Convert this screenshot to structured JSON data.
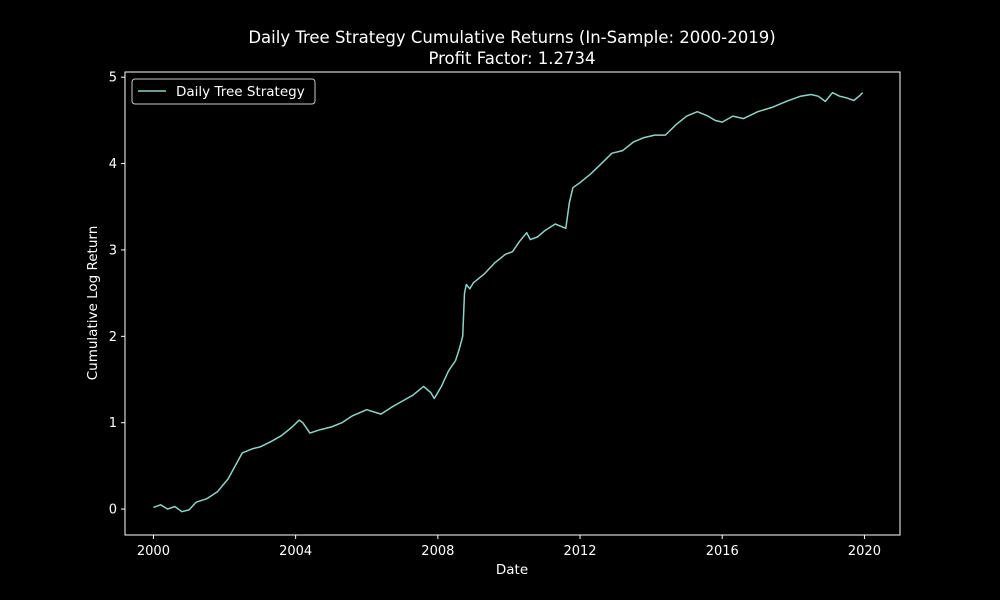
{
  "chart_data": {
    "type": "line",
    "title": "Daily Tree Strategy Cumulative Returns (In-Sample: 2000-2019)",
    "subtitle": "Profit Factor: 1.2734",
    "xlabel": "Date",
    "ylabel": "Cumulative Log Return",
    "xlim": [
      1999.2,
      2021.0
    ],
    "ylim": [
      -0.3,
      5.06
    ],
    "x_ticks": [
      2000,
      2004,
      2008,
      2012,
      2016,
      2020
    ],
    "x_tick_labels": [
      "2000",
      "2004",
      "2008",
      "2012",
      "2016",
      "2020"
    ],
    "y_ticks": [
      0,
      1,
      2,
      3,
      4,
      5
    ],
    "y_tick_labels": [
      "0",
      "1",
      "2",
      "3",
      "4",
      "5"
    ],
    "grid": false,
    "legend_position": "upper-left",
    "series": [
      {
        "name": "Daily Tree Strategy",
        "color": "#8dd3c7",
        "x": [
          2000.0,
          2000.2,
          2000.4,
          2000.6,
          2000.8,
          2001.0,
          2001.2,
          2001.5,
          2001.8,
          2002.1,
          2002.3,
          2002.5,
          2002.8,
          2003.0,
          2003.3,
          2003.6,
          2003.9,
          2004.1,
          2004.2,
          2004.4,
          2004.7,
          2005.0,
          2005.3,
          2005.6,
          2006.0,
          2006.4,
          2006.7,
          2007.0,
          2007.3,
          2007.6,
          2007.8,
          2007.9,
          2008.1,
          2008.3,
          2008.5,
          2008.6,
          2008.7,
          2008.75,
          2008.8,
          2008.9,
          2009.0,
          2009.3,
          2009.6,
          2009.9,
          2010.1,
          2010.3,
          2010.5,
          2010.6,
          2010.8,
          2011.0,
          2011.3,
          2011.6,
          2011.7,
          2011.8,
          2012.0,
          2012.3,
          2012.6,
          2012.9,
          2013.2,
          2013.5,
          2013.8,
          2014.1,
          2014.4,
          2014.7,
          2015.0,
          2015.3,
          2015.6,
          2015.8,
          2016.0,
          2016.3,
          2016.6,
          2017.0,
          2017.4,
          2017.8,
          2018.2,
          2018.5,
          2018.7,
          2018.9,
          2019.1,
          2019.3,
          2019.5,
          2019.7,
          2019.85,
          2019.95
        ],
        "values": [
          0.02,
          0.05,
          0.0,
          0.03,
          -0.03,
          -0.01,
          0.08,
          0.12,
          0.2,
          0.35,
          0.5,
          0.65,
          0.7,
          0.72,
          0.78,
          0.85,
          0.95,
          1.03,
          1.0,
          0.88,
          0.92,
          0.95,
          1.0,
          1.08,
          1.15,
          1.1,
          1.18,
          1.25,
          1.32,
          1.42,
          1.35,
          1.28,
          1.42,
          1.6,
          1.72,
          1.85,
          2.0,
          2.5,
          2.6,
          2.55,
          2.62,
          2.72,
          2.85,
          2.95,
          2.98,
          3.1,
          3.2,
          3.12,
          3.15,
          3.22,
          3.3,
          3.25,
          3.55,
          3.72,
          3.78,
          3.88,
          4.0,
          4.12,
          4.15,
          4.25,
          4.3,
          4.33,
          4.33,
          4.45,
          4.55,
          4.6,
          4.55,
          4.5,
          4.48,
          4.55,
          4.52,
          4.6,
          4.65,
          4.72,
          4.78,
          4.8,
          4.78,
          4.72,
          4.82,
          4.78,
          4.76,
          4.73,
          4.78,
          4.82
        ]
      }
    ]
  }
}
